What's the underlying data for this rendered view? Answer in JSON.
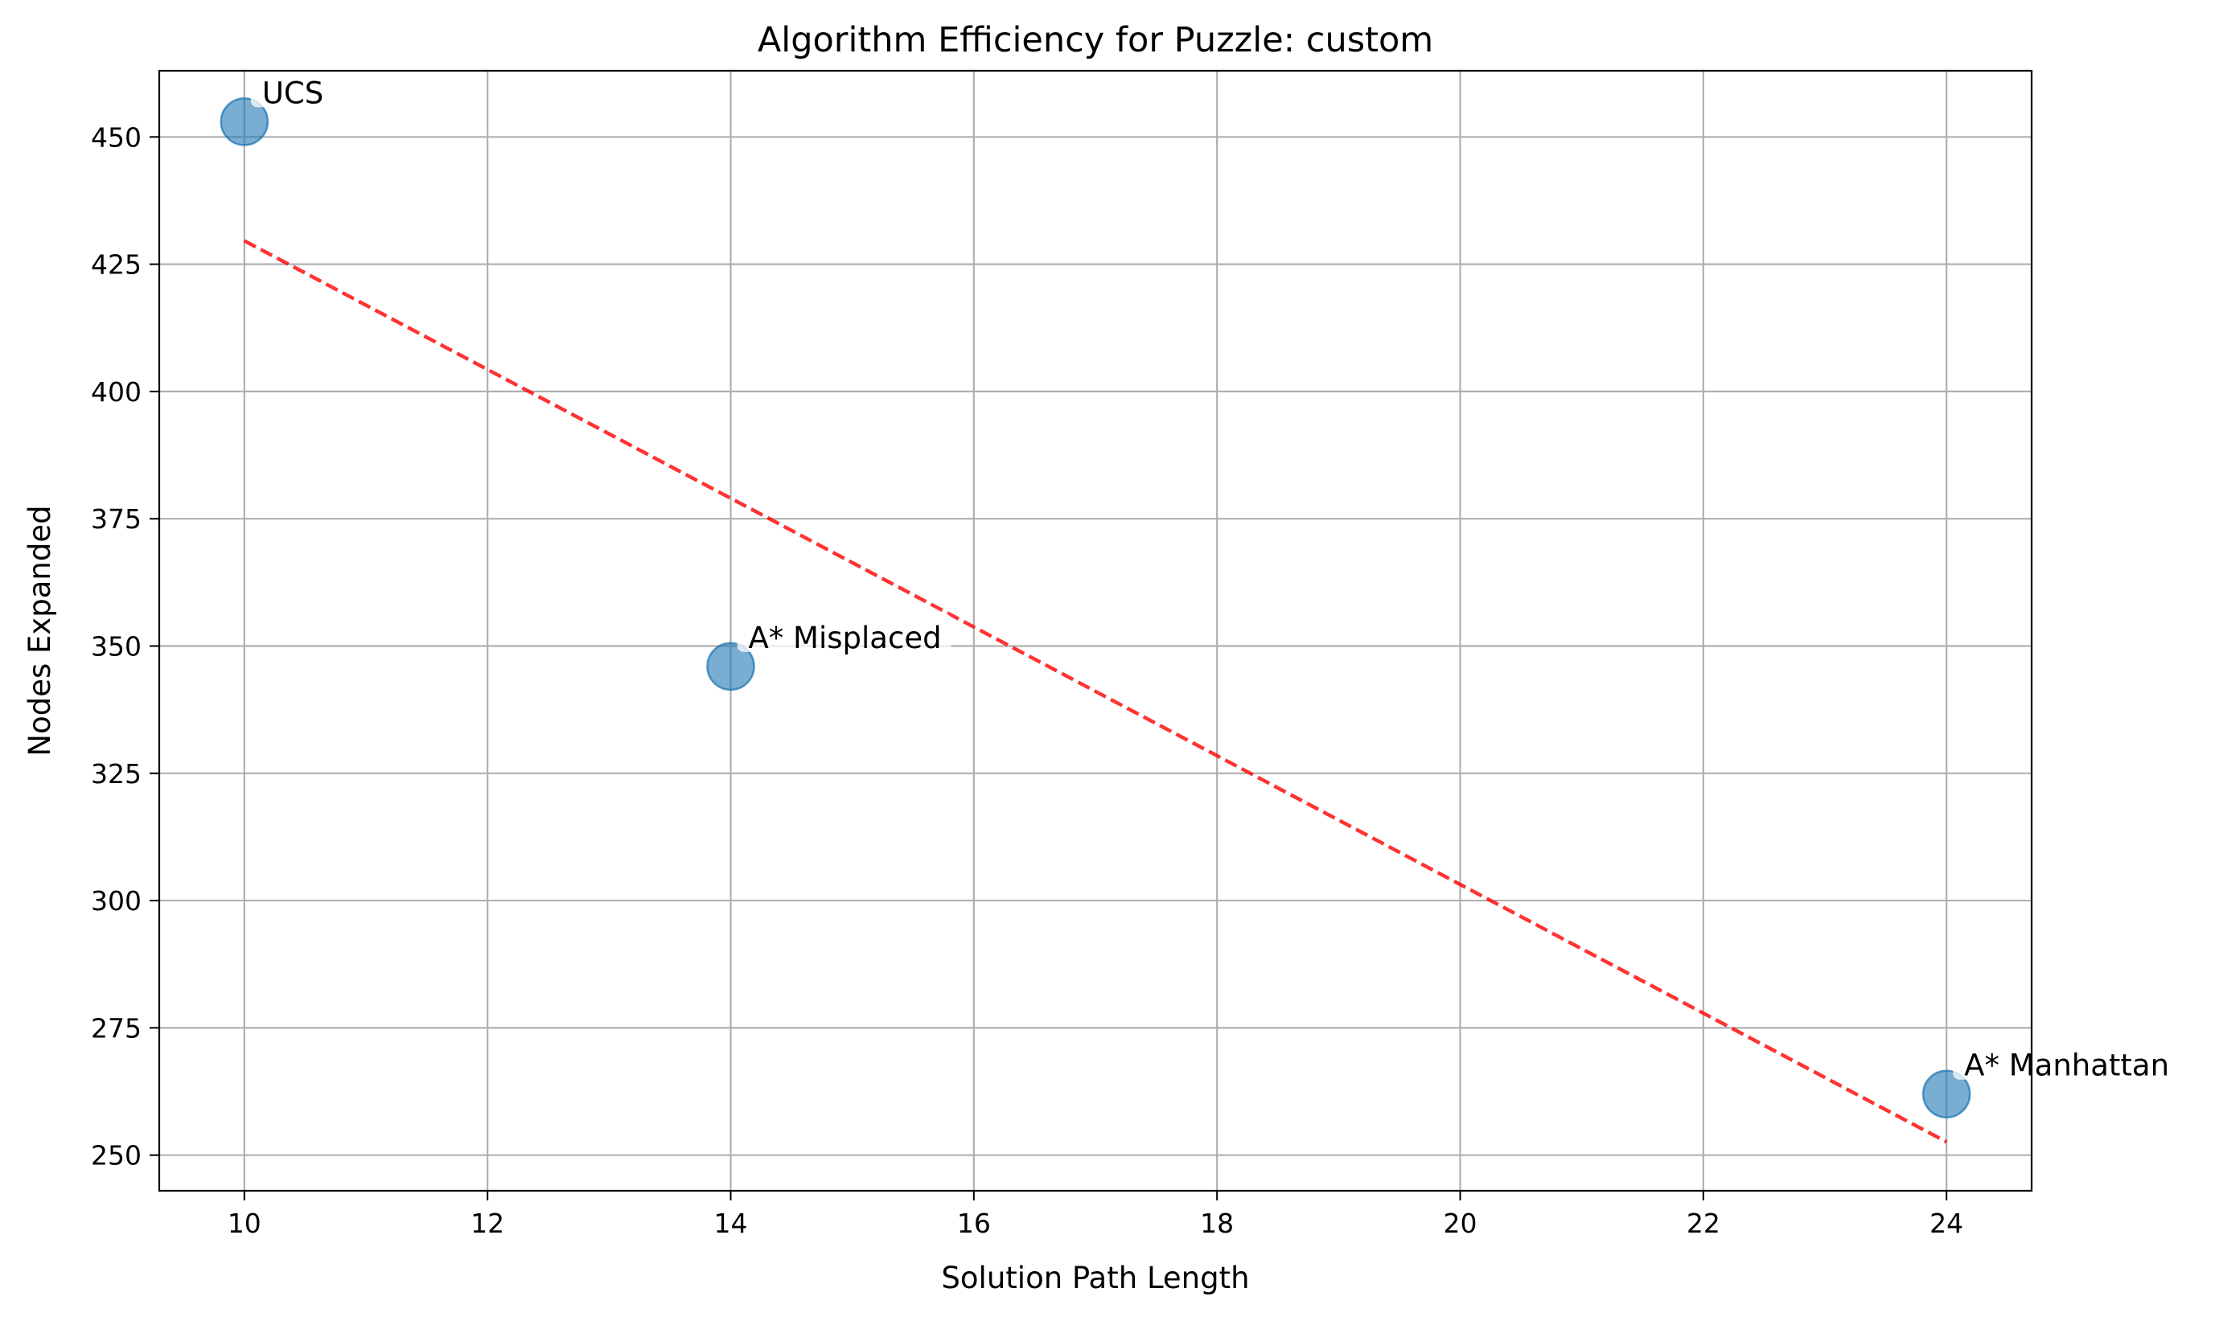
{
  "chart_data": {
    "type": "scatter",
    "title": "Algorithm Efficiency for Puzzle: custom",
    "xlabel": "Solution Path Length",
    "ylabel": "Nodes Expanded",
    "xlim": [
      9.3,
      24.7
    ],
    "ylim": [
      243,
      463
    ],
    "xticks": [
      10,
      12,
      14,
      16,
      18,
      20,
      22,
      24
    ],
    "yticks": [
      250,
      275,
      300,
      325,
      350,
      375,
      400,
      425,
      450
    ],
    "grid": true,
    "points": [
      {
        "label": "UCS",
        "x": 10,
        "y": 453
      },
      {
        "label": "A* Misplaced",
        "x": 14,
        "y": 346
      },
      {
        "label": "A* Manhattan",
        "x": 24,
        "y": 262
      }
    ],
    "trendline": {
      "x": [
        10,
        24
      ],
      "y": [
        429.6,
        252.6
      ],
      "style": "dashed"
    },
    "colors": {
      "points": "#1f77b4",
      "trendline": "#ff0000"
    }
  }
}
